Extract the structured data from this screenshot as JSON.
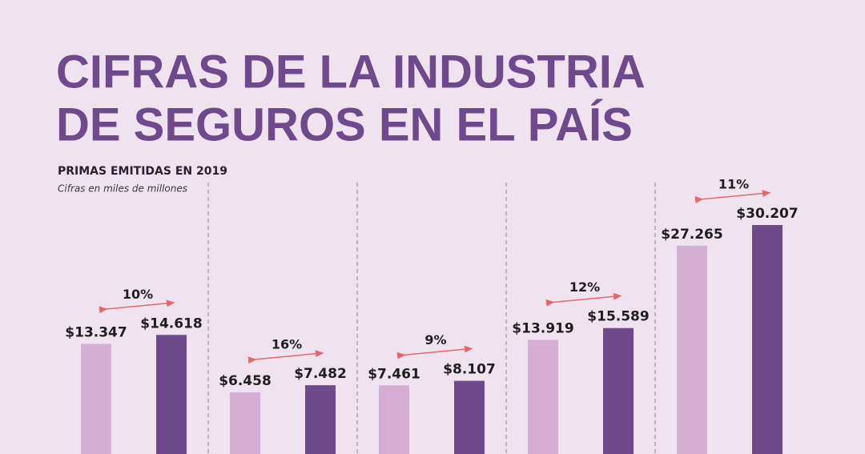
{
  "chart_data": {
    "type": "bar",
    "title": [
      "CIFRAS DE LA INDUSTRIA",
      "DE SEGUROS EN EL PAÍS"
    ],
    "subtitle": "PRIMAS EMITIDAS EN 2019",
    "note": "Cifras en miles de millones",
    "categories": [
      null,
      null,
      null,
      null,
      null
    ],
    "series": [
      {
        "color": "#d4aed3",
        "values": [
          13347,
          6458,
          7461,
          13919,
          27265
        ],
        "value_labels": [
          "$13.347",
          "$6.458",
          "$7.461",
          "$13.919",
          "$27.265"
        ]
      },
      {
        "color": "#6e4a8d",
        "values": [
          14618,
          7482,
          8107,
          15589,
          30207
        ],
        "value_labels": [
          "$14.618",
          "$7.482",
          "$8.107",
          "$15.589",
          "$30.207"
        ]
      }
    ],
    "annotations": [
      "10%",
      "16%",
      "9%",
      "12%",
      "11%"
    ],
    "annotation_color": "#e2676d"
  }
}
